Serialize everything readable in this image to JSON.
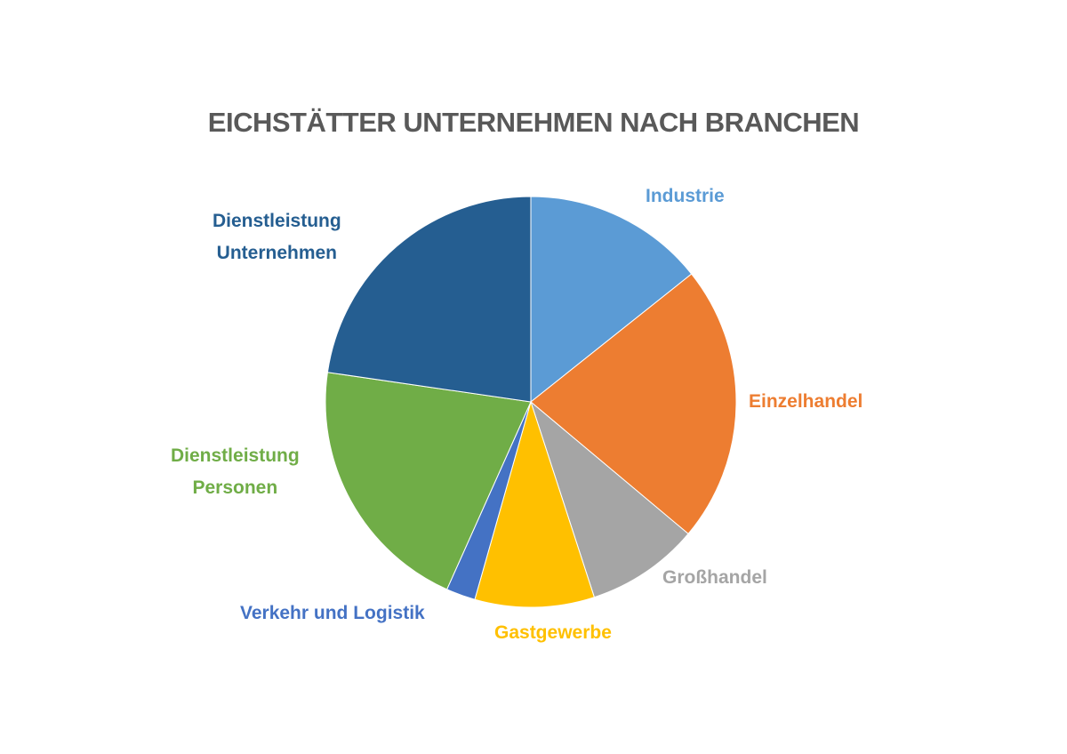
{
  "chart_data": {
    "type": "pie",
    "title": "EICHSTÄTTER UNTERNEHMEN NACH BRANCHEN",
    "unit": "percent (estimated from slice angles)",
    "slices": [
      {
        "label": "Industrie",
        "lines": [
          "Industrie"
        ],
        "value": 14.3,
        "color": "#5b9bd5"
      },
      {
        "label": "Einzelhandel",
        "lines": [
          "Einzelhandel"
        ],
        "value": 21.8,
        "color": "#ed7d31"
      },
      {
        "label": "Großhandel",
        "lines": [
          "Großhandel"
        ],
        "value": 8.9,
        "color": "#a5a5a5"
      },
      {
        "label": "Gastgewerbe",
        "lines": [
          "Gastgewerbe"
        ],
        "value": 9.4,
        "color": "#ffc000"
      },
      {
        "label": "Verkehr und Logistik",
        "lines": [
          "Verkehr und Logistik"
        ],
        "value": 2.3,
        "color": "#4472c4"
      },
      {
        "label": "Dienstleistung Personen",
        "lines": [
          "Dienstleistung",
          "Personen"
        ],
        "value": 20.6,
        "color": "#70ad47"
      },
      {
        "label": "Dienstleistung Unternehmen",
        "lines": [
          "Dienstleistung",
          "Unternehmen"
        ],
        "value": 22.7,
        "color": "#255e91"
      }
    ],
    "start_angle_deg": 0,
    "direction": "clockwise",
    "legend": "none",
    "labels": "outside"
  }
}
